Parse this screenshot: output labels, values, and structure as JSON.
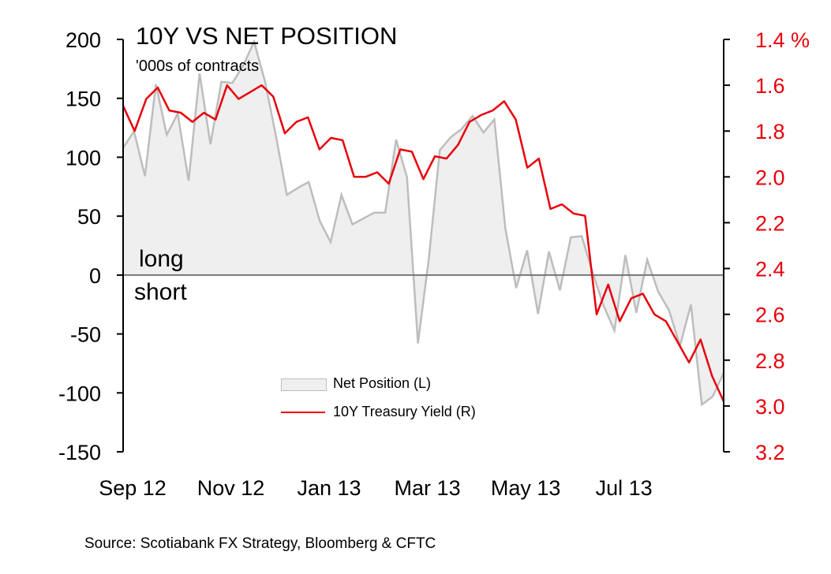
{
  "title": "10Y VS NET POSITION",
  "subtitle": "'000s of contracts",
  "zone_labels": {
    "long": "long",
    "short": "short"
  },
  "source": "Source: Scotiabank FX Strategy, Bloomberg & CFTC",
  "colors": {
    "area_fill": "#efefef",
    "area_stroke": "#bdbdbd",
    "line": "#e8000b",
    "zero_line": "#777777"
  },
  "chart_data": {
    "type": "area",
    "x_tick_labels": [
      "Sep 12",
      "Nov 12",
      "Jan 13",
      "Mar 13",
      "May 13",
      "Jul 13"
    ],
    "x_tick_index": [
      0,
      9,
      18,
      27,
      36,
      45
    ],
    "left_axis": {
      "ylim": [
        -150,
        200
      ],
      "ticks": [
        "200",
        "150",
        "100",
        "50",
        "0",
        "-50",
        "-100",
        "-150"
      ],
      "tick_values": [
        200,
        150,
        100,
        50,
        0,
        -50,
        -100,
        -150
      ]
    },
    "right_axis": {
      "ylim": [
        1.4,
        3.2
      ],
      "inverted": true,
      "ticks": [
        "1.4 %",
        "1.6",
        "1.8",
        "2.0",
        "2.2",
        "2.4",
        "2.6",
        "2.8",
        "3.0",
        "3.2"
      ],
      "tick_values": [
        1.4,
        1.6,
        1.8,
        2.0,
        2.2,
        2.4,
        2.6,
        2.8,
        3.0,
        3.2
      ]
    },
    "series": [
      {
        "name": "Net Position (L)",
        "type": "area",
        "axis": "left",
        "values": [
          108,
          122,
          84,
          162,
          119,
          137,
          80,
          171,
          111,
          164,
          163,
          178,
          198,
          164,
          118,
          68,
          74,
          79,
          46,
          28,
          68,
          43,
          48,
          53,
          53,
          115,
          83,
          -58,
          14,
          106,
          117,
          124,
          135,
          121,
          132,
          40,
          -11,
          21,
          -33,
          20,
          -13,
          32,
          33,
          2,
          -26,
          -47,
          17,
          -32,
          13,
          -14,
          -30,
          -60,
          -25,
          -110,
          -103,
          -83
        ]
      },
      {
        "name": "10Y Treasury Yield (R)",
        "type": "line",
        "axis": "right",
        "values": [
          1.69,
          1.8,
          1.66,
          1.61,
          1.71,
          1.72,
          1.76,
          1.72,
          1.75,
          1.6,
          1.66,
          1.63,
          1.6,
          1.65,
          1.81,
          1.76,
          1.74,
          1.88,
          1.83,
          1.84,
          2.0,
          2.0,
          1.98,
          2.03,
          1.88,
          1.89,
          2.01,
          1.91,
          1.92,
          1.86,
          1.76,
          1.73,
          1.71,
          1.67,
          1.75,
          1.96,
          1.92,
          2.14,
          2.12,
          2.16,
          2.17,
          2.6,
          2.47,
          2.63,
          2.53,
          2.51,
          2.6,
          2.63,
          2.72,
          2.81,
          2.71,
          2.87,
          2.98
        ]
      }
    ],
    "legend": {
      "placement": "bottom-center"
    },
    "grid": false
  }
}
